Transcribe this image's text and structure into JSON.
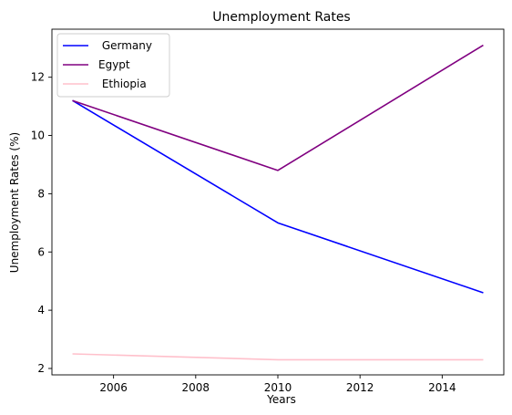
{
  "chart_data": {
    "type": "line",
    "title": "Unemployment Rates",
    "xlabel": "Years",
    "ylabel": "Unemployment Rates (%)",
    "x": [
      2005,
      2010,
      2015
    ],
    "xlim": [
      2004.5,
      2015.5
    ],
    "ylim": [
      1.78,
      13.65
    ],
    "xticks": [
      2006,
      2008,
      2010,
      2012,
      2014
    ],
    "yticks": [
      2,
      4,
      6,
      8,
      10,
      12
    ],
    "grid": false,
    "legend_position": "top-left",
    "series": [
      {
        "name": " Germany",
        "color": "#0000ff",
        "values": [
          11.2,
          7.0,
          4.6
        ]
      },
      {
        "name": "Egypt",
        "color": "#800080",
        "values": [
          11.2,
          8.8,
          13.1
        ]
      },
      {
        "name": " Ethiopia",
        "color": "#ffc0cb",
        "values": [
          2.5,
          2.3,
          2.3
        ]
      }
    ]
  }
}
